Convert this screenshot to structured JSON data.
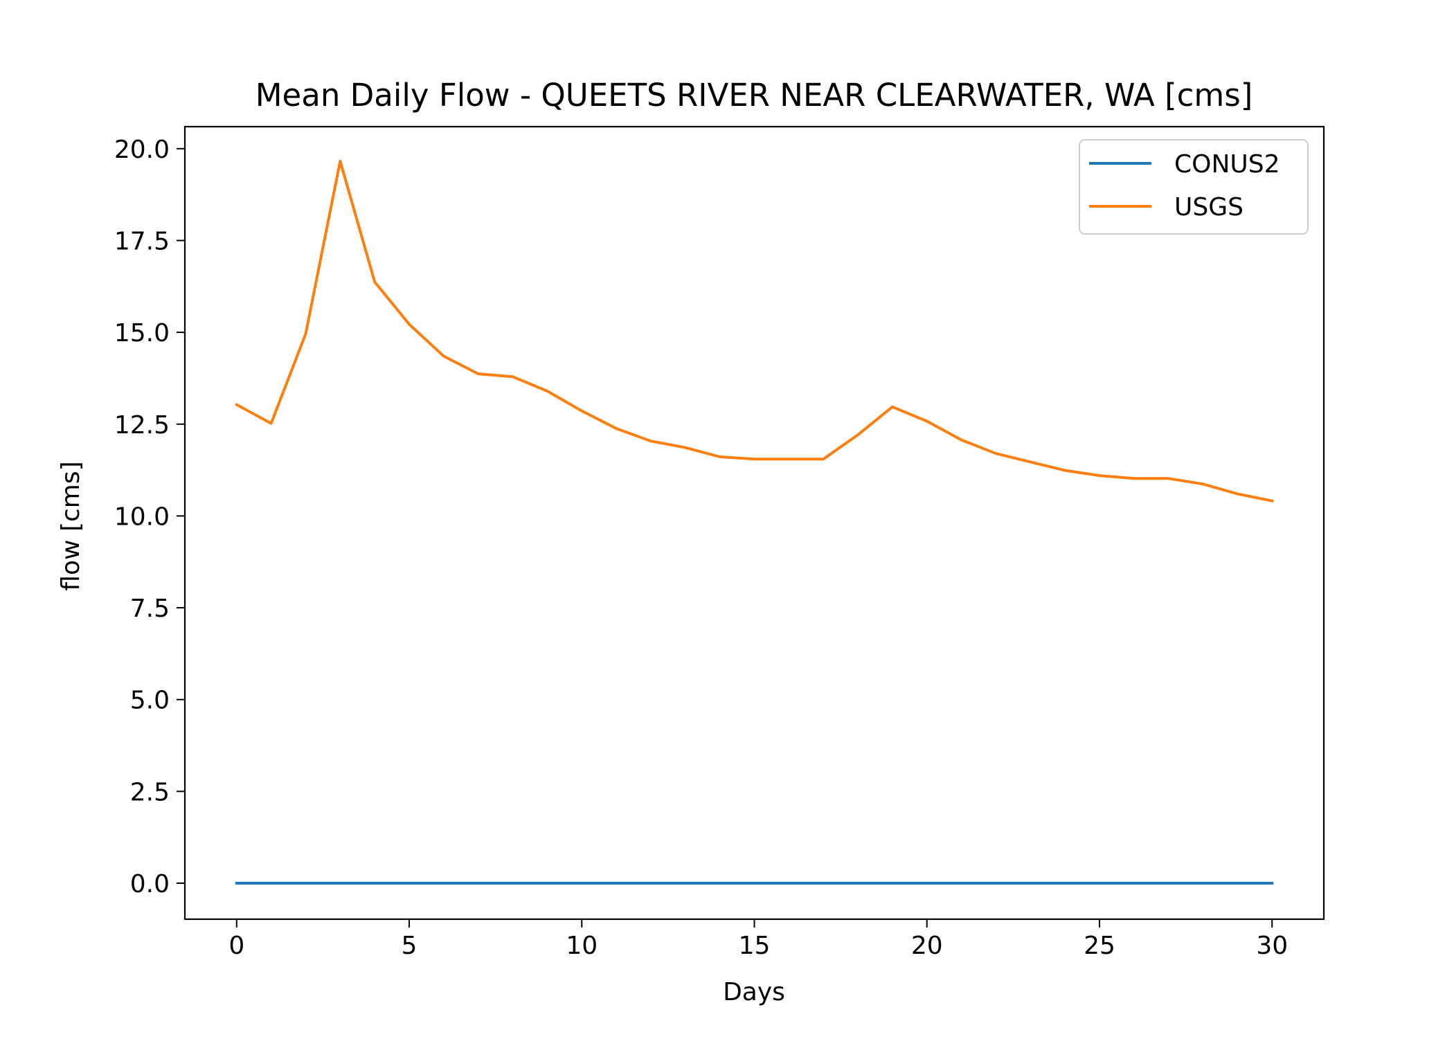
{
  "chart_data": {
    "type": "line",
    "title": "Mean Daily Flow - QUEETS RIVER NEAR CLEARWATER, WA [cms]",
    "xlabel": "Days",
    "ylabel": "flow [cms]",
    "xlim": [
      -1.5,
      31.5
    ],
    "ylim": [
      -0.98,
      20.6
    ],
    "xticks": [
      0,
      5,
      10,
      15,
      20,
      25,
      30
    ],
    "xtick_labels": [
      "0",
      "5",
      "10",
      "15",
      "20",
      "25",
      "30"
    ],
    "yticks": [
      0,
      2.5,
      5,
      7.5,
      10,
      12.5,
      15,
      17.5,
      20
    ],
    "ytick_labels": [
      "0.0",
      "2.5",
      "5.0",
      "7.5",
      "10.0",
      "12.5",
      "15.0",
      "17.5",
      "20.0"
    ],
    "grid": false,
    "legend": "top-right",
    "x": [
      0,
      1,
      2,
      3,
      4,
      5,
      6,
      7,
      8,
      9,
      10,
      11,
      12,
      13,
      14,
      15,
      16,
      17,
      18,
      19,
      20,
      21,
      22,
      23,
      24,
      25,
      26,
      27,
      28,
      29,
      30
    ],
    "series": [
      {
        "name": "CONUS2",
        "color": "#1f77b4",
        "values": [
          0,
          0,
          0,
          0,
          0,
          0,
          0,
          0,
          0,
          0,
          0,
          0,
          0,
          0,
          0,
          0,
          0,
          0,
          0,
          0,
          0,
          0,
          0,
          0,
          0,
          0,
          0,
          0,
          0,
          0,
          0
        ]
      },
      {
        "name": "USGS",
        "color": "#ff7f0e",
        "values": [
          13.03,
          12.52,
          14.96,
          19.66,
          16.37,
          15.22,
          14.35,
          13.87,
          13.79,
          13.4,
          12.86,
          12.38,
          12.04,
          11.86,
          11.61,
          11.55,
          11.55,
          11.55,
          12.21,
          12.97,
          12.58,
          12.07,
          11.7,
          11.47,
          11.24,
          11.1,
          11.02,
          11.02,
          10.87,
          10.6,
          10.41
        ]
      }
    ]
  }
}
